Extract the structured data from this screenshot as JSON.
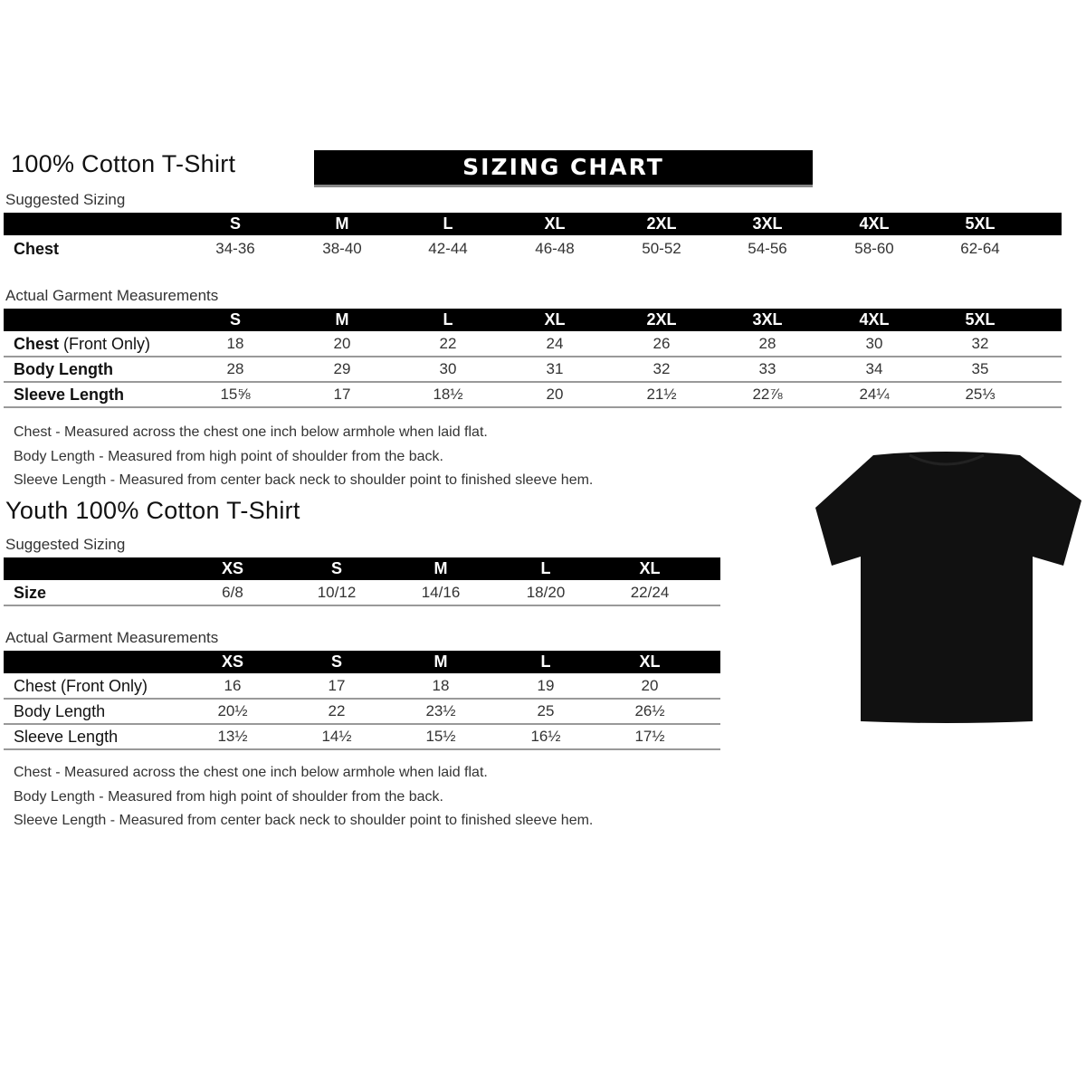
{
  "adult": {
    "title": "100% Cotton T-Shirt",
    "banner": "SIZING CHART",
    "suggested_label": "Suggested Sizing",
    "sizes": [
      "S",
      "M",
      "L",
      "XL",
      "2XL",
      "3XL",
      "4XL",
      "5XL"
    ],
    "suggested_rows": [
      {
        "label": "Chest",
        "values": [
          "34-36",
          "38-40",
          "42-44",
          "46-48",
          "50-52",
          "54-56",
          "58-60",
          "62-64"
        ]
      }
    ],
    "actual_label": "Actual Garment Measurements",
    "actual_rows": [
      {
        "label": "Chest",
        "label_suffix": " (Front Only)",
        "values": [
          "18",
          "20",
          "22",
          "24",
          "26",
          "28",
          "30",
          "32"
        ]
      },
      {
        "label": "Body Length",
        "label_suffix": "",
        "values": [
          "28",
          "29",
          "30",
          "31",
          "32",
          "33",
          "34",
          "35"
        ]
      },
      {
        "label": "Sleeve Length",
        "label_suffix": "",
        "values": [
          "15⅝",
          "17",
          "18½",
          "20",
          "21½",
          "22⅞",
          "24¼",
          "25⅓"
        ]
      }
    ],
    "notes": [
      "Chest - Measured across the chest one inch below armhole when laid flat.",
      "Body Length - Measured from high point of shoulder from the back.",
      "Sleeve Length - Measured from center back neck to shoulder point to finished sleeve hem."
    ]
  },
  "youth": {
    "title": "Youth 100% Cotton T-Shirt",
    "suggested_label": "Suggested Sizing",
    "sizes": [
      "XS",
      "S",
      "M",
      "L",
      "XL"
    ],
    "suggested_rows": [
      {
        "label": "Size",
        "values": [
          "6/8",
          "10/12",
          "14/16",
          "18/20",
          "22/24"
        ]
      }
    ],
    "actual_label": "Actual Garment Measurements",
    "actual_rows": [
      {
        "label": "Chest (Front Only)",
        "label_suffix": "",
        "values": [
          "16",
          "17",
          "18",
          "19",
          "20"
        ]
      },
      {
        "label": "Body Length",
        "label_suffix": "",
        "values": [
          "20½",
          "22",
          "23½",
          "25",
          "26½"
        ]
      },
      {
        "label": "Sleeve Length",
        "label_suffix": "",
        "values": [
          "13½",
          "14½",
          "15½",
          "16½",
          "17½"
        ]
      }
    ],
    "notes": [
      "Chest - Measured across the chest one inch below armhole when laid flat.",
      "Body Length - Measured from high point of shoulder from the back.",
      "Sleeve Length - Measured from center back neck to shoulder point to finished sleeve hem."
    ]
  },
  "image": {
    "icon": "black-t-shirt-icon",
    "color": "#111111"
  }
}
